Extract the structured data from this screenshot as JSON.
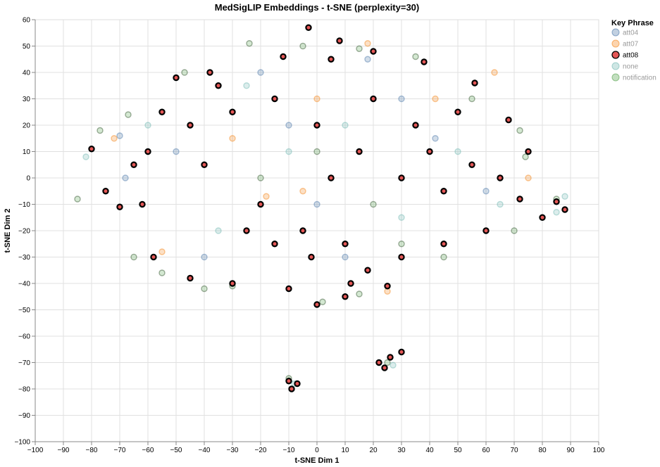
{
  "chart_data": {
    "type": "scatter",
    "title": "MedSigLIP Embeddings - t-SNE (perplexity=30)",
    "xlabel": "t-SNE Dim 1",
    "ylabel": "t-SNE Dim 2",
    "xlim": [
      -100,
      100
    ],
    "ylim": [
      -100,
      60
    ],
    "xticks": [
      -100,
      -90,
      -80,
      -70,
      -60,
      -50,
      -40,
      -30,
      -20,
      -10,
      0,
      10,
      20,
      30,
      40,
      50,
      60,
      70,
      80,
      90,
      100
    ],
    "yticks": [
      -100,
      -90,
      -80,
      -70,
      -60,
      -50,
      -40,
      -30,
      -20,
      -10,
      0,
      10,
      20,
      30,
      40,
      50,
      60
    ],
    "grid": true,
    "legend": {
      "title": "Key Phrase",
      "position": "top-right",
      "entries": [
        {
          "label": "att04",
          "color": "#4c78a8",
          "highlighted": false
        },
        {
          "label": "att07",
          "color": "#f58518",
          "highlighted": false
        },
        {
          "label": "att08",
          "color": "#e45756",
          "highlighted": true
        },
        {
          "label": "none",
          "color": "#72b7b2",
          "highlighted": false
        },
        {
          "label": "notification",
          "color": "#54a24b",
          "highlighted": false
        }
      ]
    },
    "highlighted_series": "att08",
    "sample_points": {
      "att08": [
        [
          -3,
          57
        ],
        [
          8,
          52
        ],
        [
          -80,
          11
        ],
        [
          -70,
          -11
        ],
        [
          -50,
          38
        ],
        [
          -38,
          40
        ],
        [
          -12,
          46
        ],
        [
          5,
          45
        ],
        [
          20,
          48
        ],
        [
          38,
          44
        ],
        [
          56,
          36
        ],
        [
          68,
          22
        ],
        [
          75,
          10
        ],
        [
          72,
          -8
        ],
        [
          60,
          -20
        ],
        [
          45,
          -25
        ],
        [
          30,
          -30
        ],
        [
          25,
          -41
        ],
        [
          10,
          -45
        ],
        [
          0,
          -48
        ],
        [
          -10,
          -42
        ],
        [
          -30,
          -40
        ],
        [
          -45,
          -38
        ],
        [
          -58,
          -30
        ],
        [
          -62,
          -10
        ],
        [
          -60,
          10
        ],
        [
          -45,
          20
        ],
        [
          -30,
          25
        ],
        [
          -15,
          30
        ],
        [
          0,
          20
        ],
        [
          15,
          10
        ],
        [
          30,
          0
        ],
        [
          45,
          -5
        ],
        [
          55,
          5
        ],
        [
          65,
          0
        ],
        [
          -20,
          -10
        ],
        [
          -5,
          -20
        ],
        [
          10,
          -25
        ],
        [
          88,
          -12
        ],
        [
          85,
          -9
        ],
        [
          80,
          -15
        ],
        [
          -10,
          -77
        ],
        [
          -9,
          -80
        ],
        [
          -7,
          -78
        ],
        [
          22,
          -70
        ],
        [
          26,
          -68
        ],
        [
          30,
          -66
        ],
        [
          24,
          -72
        ],
        [
          -40,
          5
        ],
        [
          -25,
          -20
        ],
        [
          5,
          0
        ],
        [
          20,
          30
        ],
        [
          35,
          20
        ],
        [
          50,
          25
        ],
        [
          40,
          10
        ],
        [
          -35,
          35
        ],
        [
          -55,
          25
        ],
        [
          -75,
          -5
        ],
        [
          -65,
          5
        ],
        [
          12,
          -40
        ],
        [
          18,
          -35
        ],
        [
          -2,
          -30
        ],
        [
          -15,
          -25
        ]
      ],
      "notification": [
        [
          -85,
          -8
        ],
        [
          -77,
          18
        ],
        [
          -67,
          24
        ],
        [
          -47,
          40
        ],
        [
          -24,
          51
        ],
        [
          -30,
          -41
        ],
        [
          -40,
          -42
        ],
        [
          -65,
          -30
        ],
        [
          -55,
          -36
        ],
        [
          2,
          -47
        ],
        [
          15,
          -44
        ],
        [
          30,
          -25
        ],
        [
          45,
          -30
        ],
        [
          70,
          -20
        ],
        [
          74,
          8
        ],
        [
          72,
          18
        ],
        [
          55,
          30
        ],
        [
          35,
          46
        ],
        [
          15,
          49
        ],
        [
          -5,
          50
        ],
        [
          -10,
          -76
        ],
        [
          25,
          -70
        ],
        [
          85,
          -8
        ],
        [
          0,
          10
        ],
        [
          -20,
          0
        ],
        [
          20,
          -10
        ]
      ],
      "att04": [
        [
          -70,
          16
        ],
        [
          -68,
          0
        ],
        [
          -40,
          -30
        ],
        [
          -20,
          40
        ],
        [
          0,
          -10
        ],
        [
          18,
          45
        ],
        [
          30,
          30
        ],
        [
          42,
          15
        ],
        [
          60,
          -5
        ],
        [
          -10,
          20
        ],
        [
          10,
          -30
        ],
        [
          -50,
          10
        ]
      ],
      "att07": [
        [
          -72,
          15
        ],
        [
          -55,
          -28
        ],
        [
          -30,
          15
        ],
        [
          -18,
          -7
        ],
        [
          0,
          30
        ],
        [
          18,
          51
        ],
        [
          25,
          -43
        ],
        [
          42,
          30
        ],
        [
          63,
          40
        ],
        [
          75,
          0
        ],
        [
          -5,
          -5
        ]
      ],
      "none": [
        [
          -82,
          8
        ],
        [
          -60,
          20
        ],
        [
          -35,
          -20
        ],
        [
          -10,
          10
        ],
        [
          10,
          20
        ],
        [
          30,
          -15
        ],
        [
          50,
          10
        ],
        [
          65,
          -10
        ],
        [
          85,
          -13
        ],
        [
          88,
          -7
        ],
        [
          -8,
          -78
        ],
        [
          27,
          -71
        ],
        [
          -25,
          35
        ]
      ]
    }
  }
}
